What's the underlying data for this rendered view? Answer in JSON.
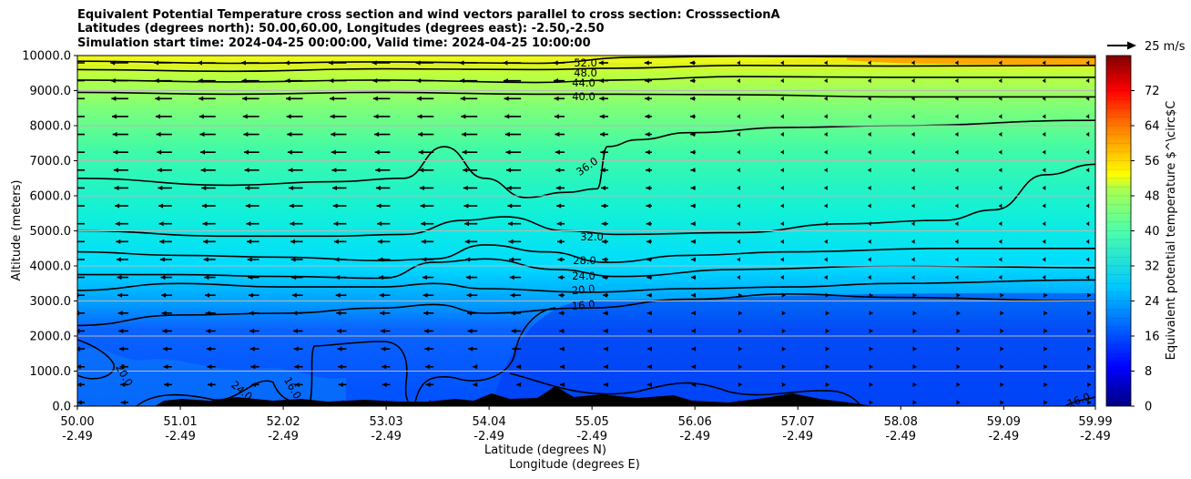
{
  "chart_data": {
    "type": "heatmap",
    "title_lines": [
      "Equivalent Potential Temperature cross section and wind vectors parallel to cross section: CrosssectionA",
      "Latitudes (degrees north): 50.00,60.00, Longitudes (degrees east): -2.50,-2.50",
      "Simulation start time: 2024-04-25 00:00:00, Valid time: 2024-04-25 10:00:00"
    ],
    "ylabel": "Altitude (meters)",
    "xlabel_lat": "Latitude (degrees N)",
    "xlabel_lon": "Longitude (degrees E)",
    "x_ticks_lat": [
      "50.00",
      "51.01",
      "52.02",
      "53.03",
      "54.04",
      "55.05",
      "56.06",
      "57.07",
      "58.08",
      "59.09",
      "59.99"
    ],
    "x_tick_values": [
      50.0,
      51.01,
      52.02,
      53.03,
      54.04,
      55.05,
      56.06,
      57.07,
      58.08,
      59.09,
      59.99
    ],
    "x_ticks_lon": [
      "-2.49",
      "-2.49",
      "-2.49",
      "-2.49",
      "-2.49",
      "-2.49",
      "-2.49",
      "-2.49",
      "-2.49",
      "-2.49",
      "-2.49"
    ],
    "y_ticks": [
      "0.0",
      "1000.0",
      "2000.0",
      "3000.0",
      "4000.0",
      "5000.0",
      "6000.0",
      "7000.0",
      "8000.0",
      "9000.0",
      "10000.0"
    ],
    "ylim": [
      0,
      10000
    ],
    "xlim": [
      50.0,
      59.99
    ],
    "grid": "horizontal lines",
    "colorbar": {
      "label": "Equivalent potential temperature $^\\circ$C",
      "ticks": [
        "0",
        "8",
        "16",
        "24",
        "32",
        "40",
        "48",
        "56",
        "64",
        "72"
      ],
      "range": [
        0,
        80
      ]
    },
    "quiver_key": {
      "label": "25 m/s"
    },
    "contour_labels": [
      "52.0",
      "48.0",
      "44.0",
      "40.0",
      "36.0",
      "32.0",
      "28.0",
      "24.0",
      "20.0",
      "16.0",
      "20.0",
      "24.0",
      "16.0",
      "16.0"
    ],
    "contours": [
      {
        "level": 52,
        "points": [
          [
            50.0,
            9840
          ],
          [
            51.5,
            9780
          ],
          [
            53.0,
            9820
          ],
          [
            54.5,
            9780
          ],
          [
            55.5,
            9950
          ],
          [
            56.5,
            9980
          ],
          [
            58.0,
            9960
          ],
          [
            59.99,
            9950
          ]
        ]
      },
      {
        "level": 48,
        "points": [
          [
            50.0,
            9600
          ],
          [
            51.5,
            9550
          ],
          [
            53.0,
            9620
          ],
          [
            54.5,
            9600
          ],
          [
            55.3,
            9640
          ],
          [
            56.5,
            9720
          ],
          [
            58.0,
            9700
          ],
          [
            59.99,
            9720
          ]
        ]
      },
      {
        "level": 44,
        "points": [
          [
            50.0,
            9300
          ],
          [
            51.5,
            9250
          ],
          [
            53.0,
            9300
          ],
          [
            54.5,
            9230
          ],
          [
            55.3,
            9300
          ],
          [
            56.5,
            9400
          ],
          [
            58.0,
            9380
          ],
          [
            59.99,
            9380
          ]
        ]
      },
      {
        "level": 40,
        "points": [
          [
            50.0,
            8950
          ],
          [
            51.5,
            8900
          ],
          [
            53.0,
            8950
          ],
          [
            54.5,
            8900
          ],
          [
            55.3,
            8900
          ],
          [
            56.5,
            8880
          ],
          [
            58.0,
            8820
          ],
          [
            59.99,
            8820
          ]
        ]
      },
      {
        "level": 36,
        "points": [
          [
            50.0,
            6500
          ],
          [
            51.5,
            6300
          ],
          [
            52.5,
            6400
          ],
          [
            53.2,
            6500
          ],
          [
            53.6,
            7400
          ],
          [
            54.0,
            6500
          ],
          [
            54.4,
            5950
          ],
          [
            54.8,
            6100
          ],
          [
            55.1,
            6200
          ],
          [
            55.2,
            7400
          ],
          [
            55.5,
            7600
          ],
          [
            56.0,
            7800
          ],
          [
            57.0,
            7950
          ],
          [
            58.0,
            8000
          ],
          [
            59.99,
            8150
          ]
        ]
      },
      {
        "level": 32,
        "points": [
          [
            50.0,
            5000
          ],
          [
            51.5,
            4850
          ],
          [
            52.5,
            4850
          ],
          [
            53.2,
            4900
          ],
          [
            53.8,
            5300
          ],
          [
            54.2,
            5400
          ],
          [
            54.8,
            5000
          ],
          [
            55.3,
            4900
          ],
          [
            56.5,
            4950
          ],
          [
            57.5,
            5200
          ],
          [
            58.5,
            5300
          ],
          [
            59.0,
            5600
          ],
          [
            59.5,
            6600
          ],
          [
            59.99,
            6900
          ]
        ]
      },
      {
        "level": 28,
        "points": [
          [
            50.0,
            4400
          ],
          [
            51.0,
            4300
          ],
          [
            52.0,
            4250
          ],
          [
            53.0,
            4150
          ],
          [
            53.5,
            4200
          ],
          [
            54.0,
            4600
          ],
          [
            54.6,
            4400
          ],
          [
            55.2,
            4100
          ],
          [
            56.0,
            4300
          ],
          [
            57.0,
            4400
          ],
          [
            58.5,
            4500
          ],
          [
            59.99,
            4500
          ]
        ]
      },
      {
        "level": 24,
        "points": [
          [
            50.0,
            3750
          ],
          [
            51.0,
            3750
          ],
          [
            52.0,
            3700
          ],
          [
            53.0,
            3650
          ],
          [
            53.5,
            4100
          ],
          [
            54.0,
            4200
          ],
          [
            54.7,
            3900
          ],
          [
            55.3,
            3700
          ],
          [
            56.5,
            3900
          ],
          [
            58.0,
            4000
          ],
          [
            59.99,
            3950
          ]
        ]
      },
      {
        "level": 20,
        "points": [
          [
            50.0,
            3300
          ],
          [
            51.0,
            3500
          ],
          [
            52.0,
            3400
          ],
          [
            53.0,
            3400
          ],
          [
            53.5,
            3500
          ],
          [
            54.0,
            3350
          ],
          [
            55.0,
            3250
          ],
          [
            56.0,
            3350
          ],
          [
            57.0,
            3400
          ],
          [
            58.0,
            3500
          ],
          [
            59.99,
            3600
          ]
        ]
      },
      {
        "level": 16,
        "points": [
          [
            50.0,
            2300
          ],
          [
            51.0,
            2600
          ],
          [
            52.0,
            2650
          ],
          [
            53.0,
            2800
          ],
          [
            53.5,
            2900
          ],
          [
            54.0,
            2650
          ],
          [
            55.0,
            2800
          ],
          [
            56.0,
            3050
          ],
          [
            57.0,
            3200
          ],
          [
            58.0,
            3100
          ],
          [
            59.99,
            3000
          ]
        ]
      }
    ]
  },
  "colors": {
    "dark_blue": "#00007f",
    "blue": "#0050ff",
    "cyan": "#11e6e6",
    "green": "#7dff7a",
    "yellow": "#ffef00",
    "orange": "#ff8000",
    "dark_red": "#800000"
  }
}
